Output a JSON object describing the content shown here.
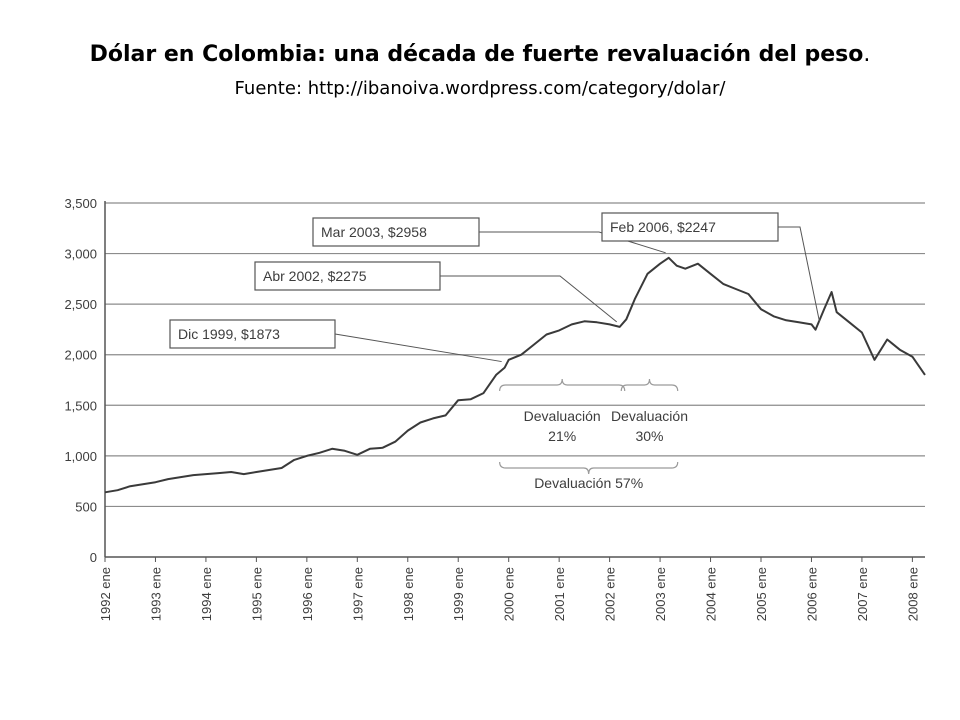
{
  "slide": {
    "title": "Dólar en Colombia: una década de fuerte revaluación del peso",
    "title_suffix": ".",
    "subtitle": "Fuente: http://ibanoiva.wordpress.com/category/dolar/"
  },
  "colors": {
    "line": "#3a3a3a",
    "grid": "#8c8c8c",
    "axis": "#555555",
    "text": "#3d3d3d",
    "box_border": "#555555"
  },
  "chart_data": {
    "type": "line",
    "title": "",
    "xlabel": "",
    "ylabel": "",
    "ylim": [
      0,
      3500
    ],
    "xlim": [
      1992.0,
      2008.25
    ],
    "grid": true,
    "y_ticks": [
      0,
      500,
      1000,
      1500,
      2000,
      2500,
      3000,
      3500
    ],
    "y_tick_labels": [
      "0",
      "500",
      "1,000",
      "1,500",
      "2,000",
      "2,500",
      "3,000",
      "3,500"
    ],
    "x_ticks": [
      1992,
      1993,
      1994,
      1995,
      1996,
      1997,
      1998,
      1999,
      2000,
      2001,
      2002,
      2003,
      2004,
      2005,
      2006,
      2007,
      2008
    ],
    "x_tick_labels": [
      "1992 ene",
      "1993 ene",
      "1994 ene",
      "1995 ene",
      "1996 ene",
      "1997 ene",
      "1998 ene",
      "1999 ene",
      "2000 ene",
      "2001 ene",
      "2002 ene",
      "2003 ene",
      "2004 ene",
      "2005 ene",
      "2006 ene",
      "2007 ene",
      "2008 ene"
    ],
    "series": [
      {
        "x": [
          1992.0,
          1992.25,
          1992.5,
          1992.75,
          1993.0,
          1993.25,
          1993.5,
          1993.75,
          1994.0,
          1994.25,
          1994.5,
          1994.75,
          1995.0,
          1995.25,
          1995.5,
          1995.75,
          1996.0,
          1996.25,
          1996.5,
          1996.75,
          1997.0,
          1997.25,
          1997.5,
          1997.75,
          1998.0,
          1998.25,
          1998.5,
          1998.75,
          1999.0,
          1999.25,
          1999.5,
          1999.75,
          1999.92,
          2000.0,
          2000.25,
          2000.5,
          2000.75,
          2001.0,
          2001.25,
          2001.5,
          2001.75,
          2002.0,
          2002.2,
          2002.33,
          2002.5,
          2002.75,
          2003.0,
          2003.17,
          2003.33,
          2003.5,
          2003.75,
          2004.0,
          2004.25,
          2004.5,
          2004.75,
          2005.0,
          2005.25,
          2005.5,
          2005.75,
          2006.0,
          2006.08,
          2006.25,
          2006.4,
          2006.5,
          2006.75,
          2007.0,
          2007.25,
          2007.5,
          2007.75,
          2008.0,
          2008.25
        ],
        "values": [
          640,
          660,
          700,
          720,
          740,
          770,
          790,
          810,
          820,
          830,
          840,
          820,
          840,
          860,
          880,
          960,
          1000,
          1030,
          1070,
          1050,
          1010,
          1070,
          1080,
          1140,
          1250,
          1330,
          1370,
          1400,
          1550,
          1560,
          1620,
          1800,
          1873,
          1950,
          2000,
          2100,
          2200,
          2240,
          2300,
          2330,
          2320,
          2300,
          2275,
          2350,
          2550,
          2800,
          2900,
          2958,
          2880,
          2850,
          2900,
          2800,
          2700,
          2650,
          2600,
          2450,
          2380,
          2340,
          2320,
          2300,
          2247,
          2450,
          2620,
          2420,
          2320,
          2220,
          1950,
          2150,
          2050,
          1980,
          1800
        ]
      }
    ],
    "annotations": [
      {
        "text": "Dic 1999, $1873",
        "x": 1999.92,
        "y": 1873
      },
      {
        "text": "Abr 2002, $2275",
        "x": 2002.2,
        "y": 2275
      },
      {
        "text": "Mar 2003, $2958",
        "x": 2003.17,
        "y": 2958
      },
      {
        "text": "Feb 2006, $2247",
        "x": 2006.08,
        "y": 2247
      }
    ],
    "ranges": [
      {
        "text": [
          "Devaluación",
          "21%"
        ],
        "x0": 1999.92,
        "x1": 2002.2
      },
      {
        "text": [
          "Devaluación",
          "30%"
        ],
        "x0": 2002.33,
        "x1": 2003.25
      },
      {
        "text": [
          "Devaluación 57%"
        ],
        "x0": 1999.92,
        "x1": 2003.25
      }
    ]
  }
}
